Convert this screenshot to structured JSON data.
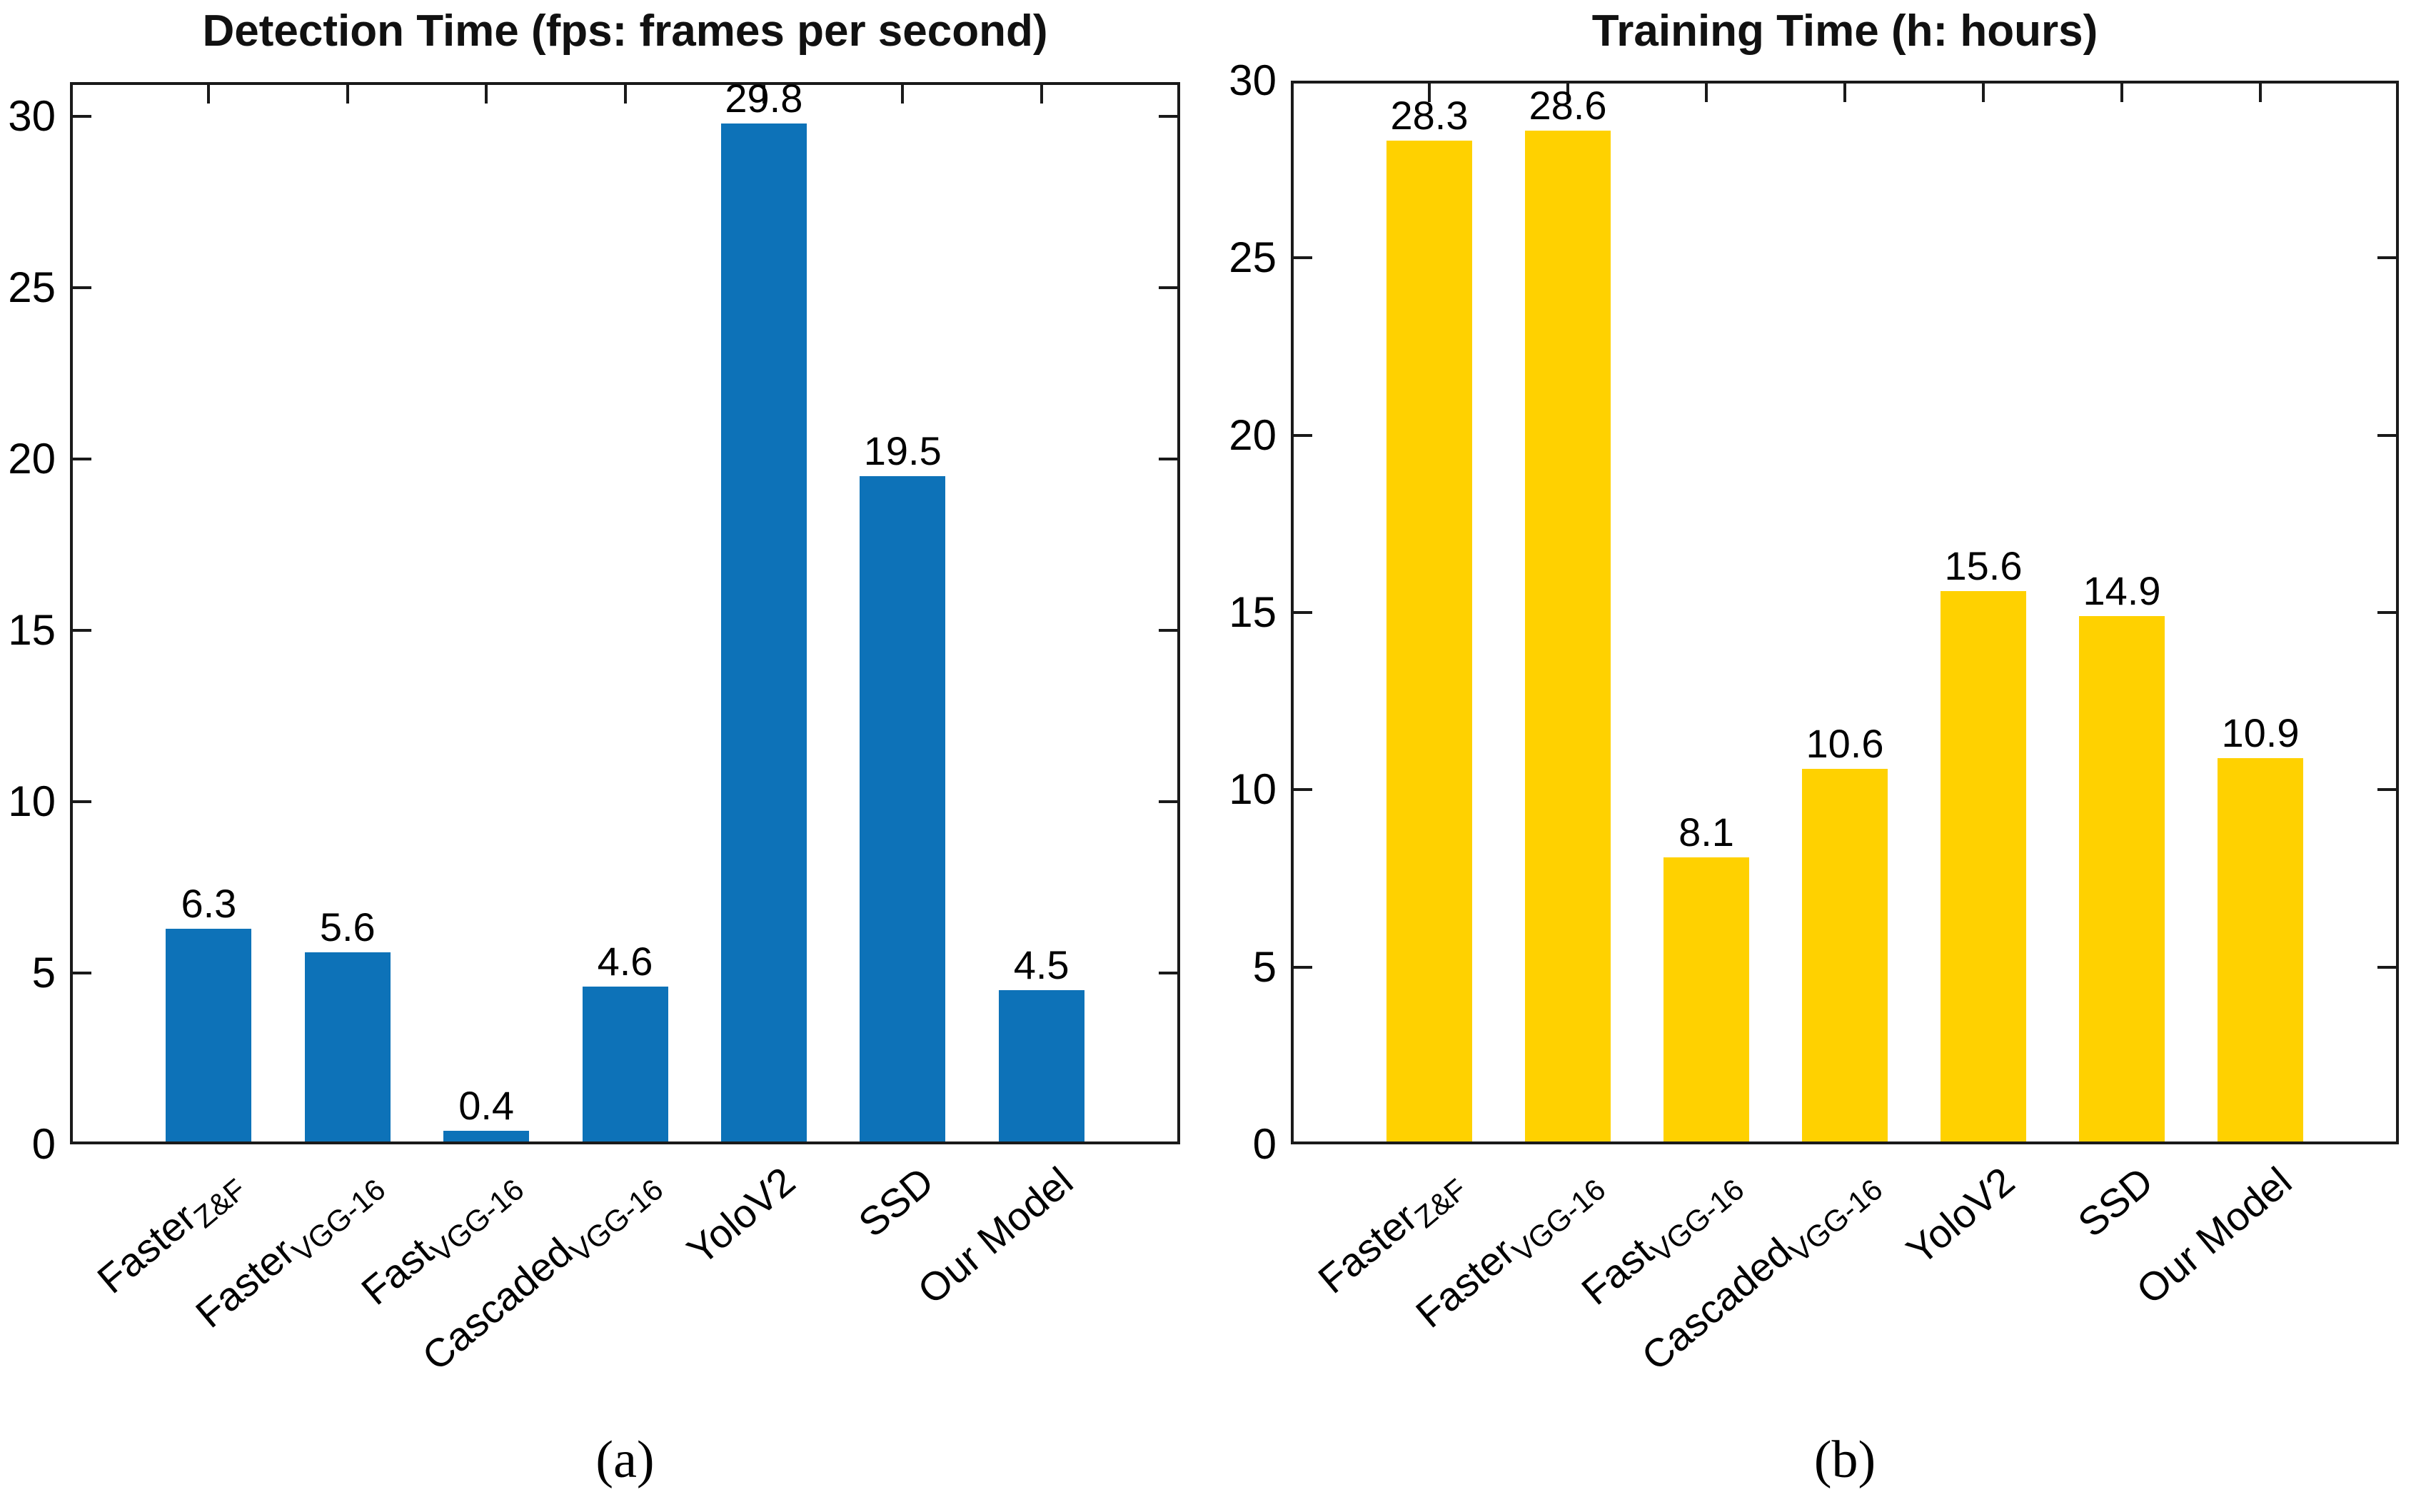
{
  "figure": {
    "description": "Two-panel bar chart figure comparing object detection models",
    "text_color": "#000000",
    "axis_color": "#1a1a1a",
    "background": "#ffffff"
  },
  "chart_data": [
    {
      "type": "bar",
      "title": "Detection Time (fps: frames per second)",
      "caption": "(a)",
      "categories": [
        {
          "main": "Faster",
          "sub": "Z&F"
        },
        {
          "main": "Faster",
          "sub": "VGG-16"
        },
        {
          "main": "Fast",
          "sub": "VGG-16"
        },
        {
          "main": "Cascaded",
          "sub": "VGG-16"
        },
        {
          "main": "YoloV2",
          "sub": ""
        },
        {
          "main": "SSD",
          "sub": ""
        },
        {
          "main": "Our Model",
          "sub": ""
        }
      ],
      "values": [
        6.3,
        5.6,
        0.4,
        4.6,
        29.8,
        19.5,
        4.5
      ],
      "value_labels": [
        "6.3",
        "5.6",
        "0.4",
        "4.6",
        "29.8",
        "19.5",
        "4.5"
      ],
      "bar_color": "#0d72b8",
      "xlabel": "",
      "ylabel": "",
      "ylim": [
        0,
        31
      ],
      "yticks": [
        0,
        5,
        10,
        15,
        20,
        25,
        30
      ],
      "grid": false,
      "legend_position": "none"
    },
    {
      "type": "bar",
      "title": "Training Time (h: hours)",
      "caption": "(b)",
      "categories": [
        {
          "main": "Faster",
          "sub": "Z&F"
        },
        {
          "main": "Faster",
          "sub": "VGG-16"
        },
        {
          "main": "Fast",
          "sub": "VGG-16"
        },
        {
          "main": "Cascaded",
          "sub": "VGG-16"
        },
        {
          "main": "YoloV2",
          "sub": ""
        },
        {
          "main": "SSD",
          "sub": ""
        },
        {
          "main": "Our Model",
          "sub": ""
        }
      ],
      "values": [
        28.3,
        28.6,
        8.1,
        10.6,
        15.6,
        14.9,
        10.9
      ],
      "value_labels": [
        "28.3",
        "28.6",
        "8.1",
        "10.6",
        "15.6",
        "14.9",
        "10.9"
      ],
      "bar_color": "#ffd100",
      "xlabel": "",
      "ylabel": "",
      "ylim": [
        0,
        30
      ],
      "yticks": [
        0,
        5,
        10,
        15,
        20,
        25,
        30
      ],
      "grid": false,
      "legend_position": "none"
    }
  ]
}
